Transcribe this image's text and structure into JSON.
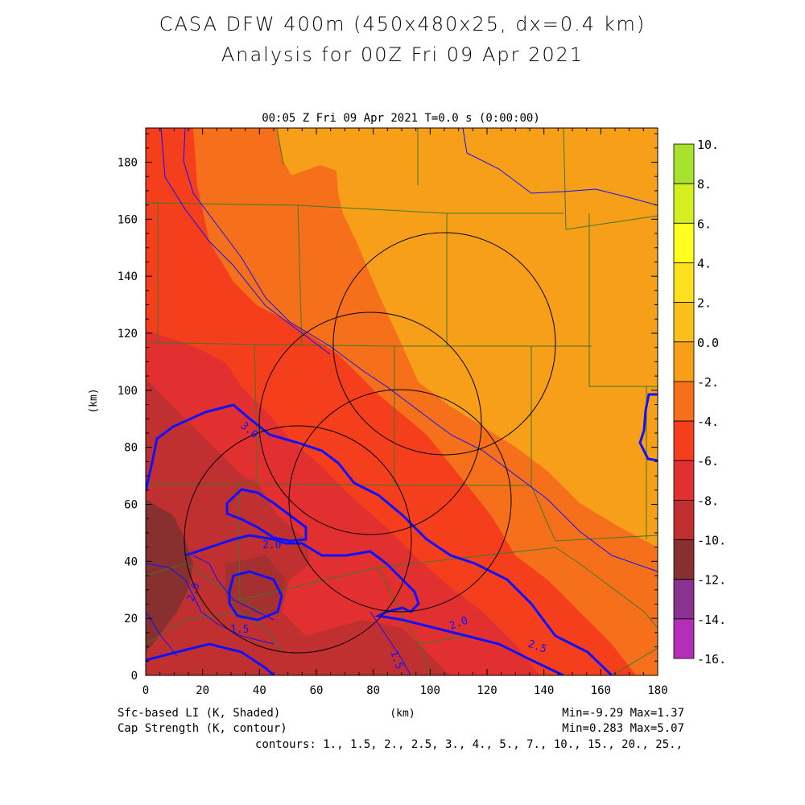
{
  "title": {
    "line1": "CASA DFW 400m (450x480x25, dx=0.4 km)",
    "line2": "Analysis for 00Z Fri 09 Apr 2021"
  },
  "subtitle": "00:05 Z Fri 09 Apr 2021   T=0.0 s (0:00:00)",
  "axes": {
    "xlabel": "(km)",
    "ylabel": "(km)",
    "xlim": [
      0,
      180
    ],
    "ylim": [
      0,
      192
    ],
    "xticks": [
      "0",
      "20",
      "40",
      "60",
      "80",
      "100",
      "120",
      "140",
      "160",
      "180"
    ],
    "yticks": [
      "0",
      "20",
      "40",
      "60",
      "80",
      "100",
      "120",
      "140",
      "160",
      "180"
    ]
  },
  "colorbar": {
    "labels": [
      "10.",
      "8.",
      "6.",
      "4.",
      "2.",
      "0.0",
      "-2.",
      "-4.",
      "-6.",
      "-8.",
      "-10.",
      "-12.",
      "-14.",
      "-16."
    ],
    "colors": [
      "#a6e22e",
      "#d4ef20",
      "#ffff20",
      "#ffe020",
      "#f9c01a",
      "#f79f18",
      "#f6701c",
      "#f43e1c",
      "#e23030",
      "#c03030",
      "#883030",
      "#8a3290",
      "#b42fb8",
      "#d73fe0"
    ]
  },
  "footer": {
    "left1": "Sfc-based LI (K, Shaded)",
    "left2": "Cap Strength (K, contour)",
    "center": "(km)",
    "right1": "Min=-9.29 Max=1.37",
    "right2": "Min=0.283 Max=5.07",
    "contours": "contours: 1., 1.5, 2., 2.5, 3., 4., 5., 7., 10., 15., 20., 25.,"
  },
  "contour_labels": [
    "3.0",
    "2.0",
    "2.0",
    "1.5",
    "1.5",
    "2.0",
    "2.5"
  ],
  "radar_rings_km": [
    {
      "cx": 108,
      "cy": 116,
      "r": 39
    },
    {
      "cx": 79,
      "cy": 88,
      "r": 39
    },
    {
      "cx": 90,
      "cy": 63,
      "r": 39
    },
    {
      "cx": 55,
      "cy": 50,
      "r": 38
    }
  ],
  "colors": {
    "li_0_to_2": "#f79f18",
    "li_m2_to_0": "#f6701c",
    "li_m4_to_m2": "#f43e1c",
    "li_m6_to_m4": "#e23030",
    "li_m8_to_m6": "#c03030",
    "li_m10_to_m8": "#883030",
    "contour": "#1010ff",
    "county_lines": "#3a7a2a",
    "rings": "#000000"
  }
}
